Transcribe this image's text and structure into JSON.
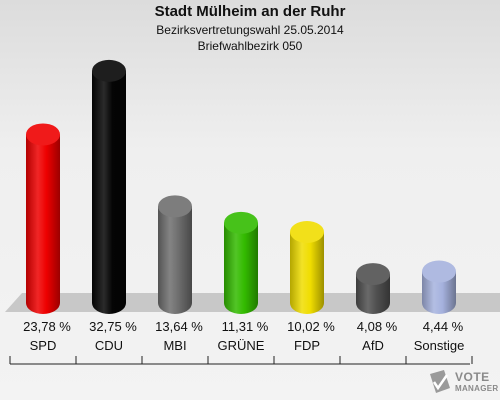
{
  "header": {
    "title": "Stadt Mülheim an der Ruhr",
    "subtitle": "Bezirksvertretungswahl 25.05.2014",
    "district": "Briefwahlbezirk 050"
  },
  "logo": {
    "line1": "VOTE",
    "line2": "MANAGER"
  },
  "chart_data": {
    "type": "bar",
    "categories": [
      "SPD",
      "CDU",
      "MBI",
      "GRÜNE",
      "FDP",
      "AfD",
      "Sonstige"
    ],
    "values": [
      23.78,
      32.75,
      13.64,
      11.31,
      10.02,
      4.08,
      4.44
    ],
    "value_labels": [
      "23,78 %",
      "32,75 %",
      "13,64 %",
      "11,31 %",
      "10,02 %",
      "4,08 %",
      "4,44 %"
    ],
    "colors": [
      "#ee0000",
      "#050505",
      "#6e6e6e",
      "#33bb00",
      "#f0dd00",
      "#505050",
      "#a6b2de"
    ],
    "ylim": [
      0,
      35
    ],
    "grid": false,
    "legend": "none"
  }
}
